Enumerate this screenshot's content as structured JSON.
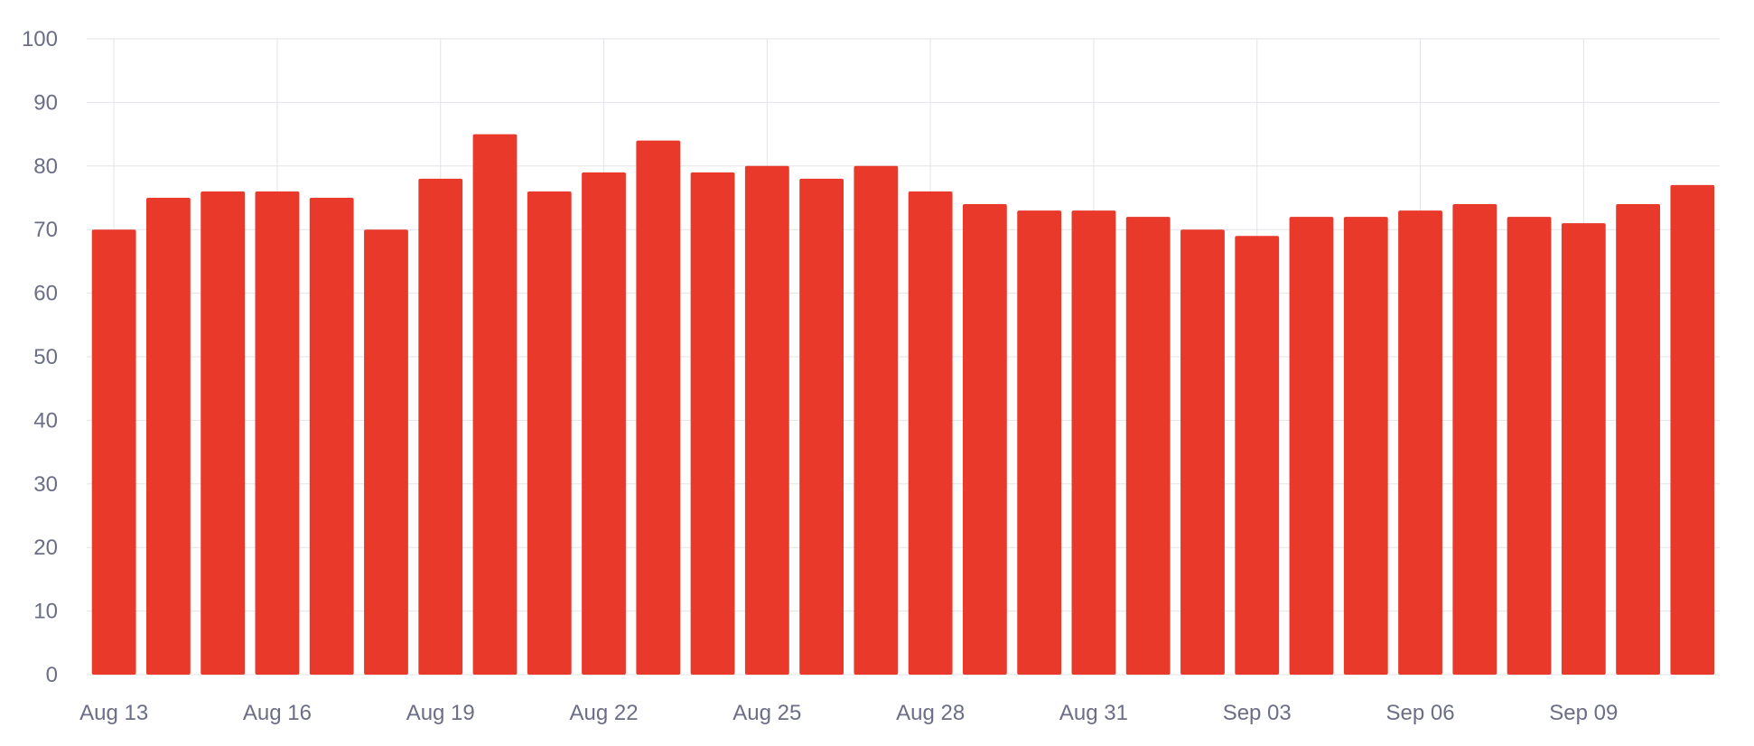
{
  "chart_data": {
    "type": "bar",
    "title": "",
    "xlabel": "",
    "ylabel": "",
    "ylim": [
      0,
      100
    ],
    "yticks": [
      0,
      10,
      20,
      30,
      40,
      50,
      60,
      70,
      80,
      90,
      100
    ],
    "grid": true,
    "bar_color": "#e8392b",
    "categories": [
      "Aug 13",
      "Aug 14",
      "Aug 15",
      "Aug 16",
      "Aug 17",
      "Aug 18",
      "Aug 19",
      "Aug 20",
      "Aug 21",
      "Aug 22",
      "Aug 23",
      "Aug 24",
      "Aug 25",
      "Aug 26",
      "Aug 27",
      "Aug 28",
      "Aug 29",
      "Aug 30",
      "Aug 31",
      "Sep 01",
      "Sep 02",
      "Sep 03",
      "Sep 04",
      "Sep 05",
      "Sep 06",
      "Sep 07",
      "Sep 08",
      "Sep 09",
      "Sep 10",
      "Sep 11"
    ],
    "values": [
      70,
      75,
      76,
      76,
      75,
      70,
      78,
      85,
      76,
      79,
      84,
      79,
      80,
      78,
      80,
      76,
      74,
      73,
      73,
      72,
      70,
      69,
      72,
      72,
      73,
      74,
      72,
      71,
      74,
      77
    ],
    "x_tick_labels": [
      {
        "category": "Aug 13",
        "label": "Aug 13"
      },
      {
        "category": "Aug 16",
        "label": "Aug 16"
      },
      {
        "category": "Aug 19",
        "label": "Aug 19"
      },
      {
        "category": "Aug 22",
        "label": "Aug 22"
      },
      {
        "category": "Aug 25",
        "label": "Aug 25"
      },
      {
        "category": "Aug 28",
        "label": "Aug 28"
      },
      {
        "category": "Aug 31",
        "label": "Aug 31"
      },
      {
        "category": "Sep 03",
        "label": "Sep 03"
      },
      {
        "category": "Sep 06",
        "label": "Sep 06"
      },
      {
        "category": "Sep 09",
        "label": "Sep 09"
      }
    ]
  }
}
